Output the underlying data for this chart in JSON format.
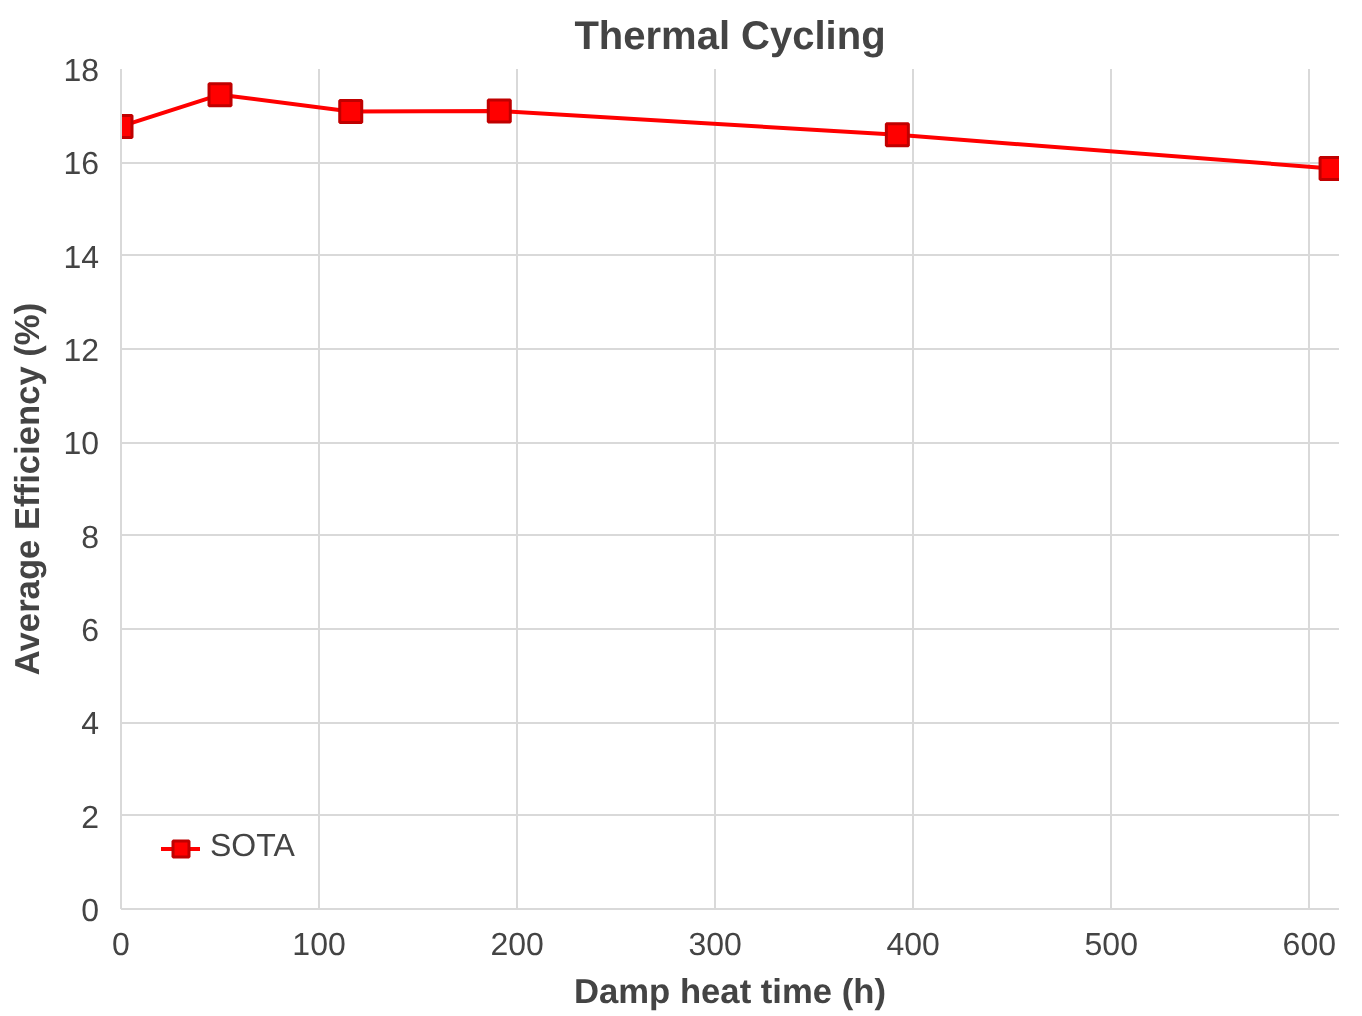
{
  "chart_data": {
    "type": "line",
    "title": "Thermal Cycling",
    "xlabel": "Damp heat time (h)",
    "ylabel": "Average Efficiency (%)",
    "x": [
      0,
      50,
      116,
      191,
      392,
      611
    ],
    "series": [
      {
        "name": "SOTA",
        "color": "#ff0000",
        "values": [
          16.77,
          17.45,
          17.09,
          17.1,
          16.59,
          15.87
        ]
      }
    ],
    "xlim": [
      0,
      615
    ],
    "xticks": [
      0,
      100,
      200,
      300,
      400,
      500,
      600
    ],
    "ylim": [
      0,
      18
    ],
    "yticks": [
      0,
      2,
      4,
      6,
      8,
      10,
      12,
      14,
      16,
      18
    ],
    "grid": true,
    "legend": "bottom left",
    "marker": "square",
    "line_style": "solid"
  }
}
